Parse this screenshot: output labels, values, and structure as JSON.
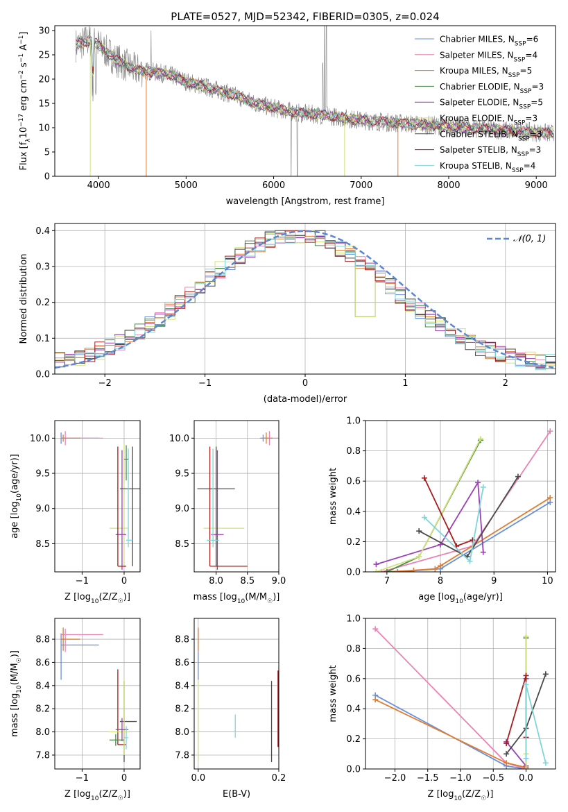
{
  "title": "PLATE=0527, MJD=52342, FIBERID=0305, z=0.024",
  "colors": {
    "chabrier_miles": "#6a8fdc",
    "salpeter_miles": "#ec82b4",
    "kroupa_miles": "#df7c2e",
    "chabrier_elodie": "#4a8a4a",
    "salpeter_elodie": "#9c3fb5",
    "kroupa_elodie": "#d2e27a",
    "chabrier_stelib": "#4a4a4a",
    "salpeter_stelib": "#a81b1b",
    "kroupa_stelib": "#7fd6d8",
    "data": "#808080",
    "gaussian": "#5b86d6",
    "grid": "#b0b0b0"
  },
  "chart_data": [
    {
      "type": "line",
      "title": "PLATE=0527, MJD=52342, FIBERID=0305, z=0.024",
      "xlabel": "wavelength [Angstrom, rest frame]",
      "ylabel": "Flux [f",
      "ylabel_parts": [
        "Flux [f",
        "λ",
        "10",
        "−17",
        " erg cm",
        "−2",
        " s",
        "−1",
        " A",
        "−1",
        "]"
      ],
      "xlim": [
        3500,
        9220
      ],
      "ylim": [
        0,
        31
      ],
      "xticks": [
        "4000",
        "5000",
        "6000",
        "7000",
        "8000",
        "9000"
      ],
      "yticks": [
        "0",
        "5",
        "10",
        "15",
        "20",
        "25",
        "30"
      ],
      "x_range_data": [
        3740,
        9200
      ],
      "series": [
        {
          "name": "Chabrier MILES, N",
          "sub": "SSP",
          "tail": "=6",
          "color_key": "chabrier_miles"
        },
        {
          "name": "Salpeter MILES, N",
          "sub": "SSP",
          "tail": "=4",
          "color_key": "salpeter_miles"
        },
        {
          "name": "Kroupa MILES, N",
          "sub": "SSP",
          "tail": "=5",
          "color_key": "kroupa_miles"
        },
        {
          "name": "Chabrier ELODIE, N",
          "sub": "SSP",
          "tail": "=3",
          "color_key": "chabrier_elodie"
        },
        {
          "name": "Salpeter ELODIE, N",
          "sub": "SSP",
          "tail": "=5",
          "color_key": "salpeter_elodie"
        },
        {
          "name": "Kroupa ELODIE, N",
          "sub": "SSP",
          "tail": "=3",
          "color_key": "kroupa_elodie"
        },
        {
          "name": "Chabrier STELIB, N",
          "sub": "SSP",
          "tail": "=3",
          "color_key": "chabrier_stelib"
        },
        {
          "name": "Salpeter STELIB, N",
          "sub": "SSP",
          "tail": "=3",
          "color_key": "salpeter_stelib"
        },
        {
          "name": "Kroupa STELIB, N",
          "sub": "SSP",
          "tail": "=4",
          "color_key": "kroupa_stelib"
        }
      ],
      "continuum": [
        [
          3740,
          27
        ],
        [
          3900,
          28
        ],
        [
          4000,
          27
        ],
        [
          4200,
          24
        ],
        [
          4400,
          22
        ],
        [
          4600,
          21.5
        ],
        [
          4800,
          21
        ],
        [
          5000,
          19.5
        ],
        [
          5200,
          18.5
        ],
        [
          5500,
          17
        ],
        [
          5800,
          15
        ],
        [
          6000,
          14
        ],
        [
          6300,
          13
        ],
        [
          6600,
          12.5
        ],
        [
          6800,
          12
        ],
        [
          7000,
          11.5
        ],
        [
          7400,
          11
        ],
        [
          7800,
          10.5
        ],
        [
          8200,
          10
        ],
        [
          8600,
          9.5
        ],
        [
          9200,
          8.8
        ]
      ],
      "legend_position": "upper right"
    },
    {
      "type": "line",
      "xlabel": "(data-model)/error",
      "ylabel": "Normed distribution",
      "xlim": [
        -2.5,
        2.5
      ],
      "ylim": [
        0,
        0.42
      ],
      "xticks": [
        "−2",
        "−1",
        "0",
        "1",
        "2"
      ],
      "yticks": [
        "0.0",
        "0.1",
        "0.2",
        "0.3",
        "0.4"
      ],
      "series": [
        {
          "name": "𝒩(0, 1)",
          "type": "dashed"
        }
      ],
      "legend_position": "upper right",
      "grid": true
    },
    {
      "type": "scatter",
      "xlabel": "Z [log",
      "xlabel_parts": [
        "Z [log",
        "10",
        "(Z/Z",
        "☉",
        ")]"
      ],
      "ylabel_parts": [
        "age  [log",
        "10",
        "(age/yr)]"
      ],
      "xlim": [
        -1.65,
        0.38
      ],
      "ylim": [
        8.1,
        10.25
      ],
      "xticks": [
        "−1",
        "0"
      ],
      "yticks": [
        "8.5",
        "9.0",
        "9.5",
        "10.0"
      ],
      "points": [
        {
          "c": "chabrier_miles",
          "x": -1.5,
          "y": 10.0,
          "xerr": [
            0,
            0.9
          ],
          "yerr": [
            0.08,
            0.08
          ]
        },
        {
          "c": "salpeter_miles",
          "x": -1.4,
          "y": 10.0,
          "xerr": [
            0.1,
            0.9
          ],
          "yerr": [
            0.1,
            0.1
          ]
        },
        {
          "c": "kroupa_miles",
          "x": -1.45,
          "y": 10.0,
          "xerr": [
            0.05,
            0.4
          ],
          "yerr": [
            0.05,
            0.05
          ]
        },
        {
          "c": "kroupa_elodie",
          "x": 0.0,
          "y": 8.72,
          "xerr": [
            0.35,
            0.1
          ],
          "yerr": [
            0.55,
            1.2
          ]
        },
        {
          "c": "salpeter_elodie",
          "x": -0.05,
          "y": 8.63,
          "xerr": [
            0.15,
            0.1
          ],
          "yerr": [
            0.5,
            1.2
          ]
        },
        {
          "c": "chabrier_stelib",
          "x": 0.2,
          "y": 9.28,
          "xerr": [
            0.3,
            0.3
          ],
          "yerr": [
            1.1,
            0.6
          ]
        },
        {
          "c": "salpeter_stelib",
          "x": -0.15,
          "y": 8.18,
          "xerr": [
            0.0,
            0.2
          ],
          "yerr": [
            0.0,
            1.7
          ]
        },
        {
          "c": "kroupa_stelib",
          "x": 0.1,
          "y": 8.55,
          "xerr": [
            0.05,
            0.1
          ],
          "yerr": [
            0.1,
            1.3
          ]
        },
        {
          "c": "chabrier_elodie",
          "x": 0.05,
          "y": 9.7,
          "xerr": [
            0.05,
            0.05
          ],
          "yerr": [
            0.3,
            0.2
          ]
        }
      ],
      "grid": true
    },
    {
      "type": "scatter",
      "xlabel_parts": [
        "mass [log",
        "10",
        "(M/M",
        "☉",
        ")]"
      ],
      "xlim": [
        7.65,
        9.0
      ],
      "ylim": [
        8.1,
        10.25
      ],
      "xticks": [
        "7.5",
        "8.0",
        "8.5",
        "9.0"
      ],
      "yticks": [
        "8.5",
        "9.0",
        "9.5",
        "10.0"
      ],
      "points": [
        {
          "c": "chabrier_miles",
          "x": 8.75,
          "y": 10.0,
          "xerr": [
            0.05,
            0.05
          ],
          "yerr": [
            0.05,
            0.05
          ]
        },
        {
          "c": "salpeter_miles",
          "x": 8.85,
          "y": 10.0,
          "xerr": [
            0.1,
            0.15
          ],
          "yerr": [
            0.1,
            0.1
          ]
        },
        {
          "c": "kroupa_miles",
          "x": 8.8,
          "y": 10.0,
          "xerr": [
            0.05,
            0.1
          ],
          "yerr": [
            0.08,
            0.08
          ]
        },
        {
          "c": "kroupa_elodie",
          "x": 8.0,
          "y": 8.72,
          "xerr": [
            0.2,
            0.45
          ],
          "yerr": [
            0.6,
            1.2
          ]
        },
        {
          "c": "salpeter_elodie",
          "x": 8.02,
          "y": 8.63,
          "xerr": [
            0.1,
            0.1
          ],
          "yerr": [
            0.5,
            1.2
          ]
        },
        {
          "c": "chabrier_stelib",
          "x": 8.0,
          "y": 9.28,
          "xerr": [
            0.3,
            0.3
          ],
          "yerr": [
            1.1,
            0.6
          ]
        },
        {
          "c": "salpeter_stelib",
          "x": 7.9,
          "y": 8.18,
          "xerr": [
            0.0,
            0.6
          ],
          "yerr": [
            0.0,
            1.7
          ]
        },
        {
          "c": "kroupa_stelib",
          "x": 7.95,
          "y": 8.55,
          "xerr": [
            0.1,
            0.1
          ],
          "yerr": [
            0.1,
            1.3
          ]
        }
      ],
      "grid": true
    },
    {
      "type": "line",
      "xlabel_parts": [
        "age  [log",
        "10",
        "(age/yr)]"
      ],
      "ylabel": "mass weight",
      "xlim": [
        6.6,
        10.15
      ],
      "ylim": [
        0,
        1.0
      ],
      "xticks": [
        "7",
        "8",
        "9",
        "10"
      ],
      "yticks": [
        "0.0",
        "0.2",
        "0.4",
        "0.6",
        "0.8",
        "1.0"
      ],
      "series": [
        {
          "c": "chabrier_miles",
          "x": [
            7.2,
            8.0,
            10.05
          ],
          "y": [
            0.0,
            0.02,
            0.46
          ]
        },
        {
          "c": "salpeter_miles",
          "x": [
            6.9,
            8.6,
            10.05
          ],
          "y": [
            0.0,
            0.17,
            0.93
          ]
        },
        {
          "c": "kroupa_miles",
          "x": [
            7.0,
            7.5,
            7.9,
            8.0,
            10.05
          ],
          "y": [
            0.0,
            0.01,
            0.02,
            0.04,
            0.49
          ]
        },
        {
          "c": "chabrier_elodie",
          "x": [
            7.0,
            7.6,
            8.75
          ],
          "y": [
            0.0,
            0.1,
            0.87
          ]
        },
        {
          "c": "salpeter_elodie",
          "x": [
            6.8,
            8.0,
            8.7,
            8.8
          ],
          "y": [
            0.05,
            0.18,
            0.59,
            0.13
          ]
        },
        {
          "c": "kroupa_elodie",
          "x": [
            6.8,
            7.6,
            8.75
          ],
          "y": [
            0.0,
            0.1,
            0.88
          ]
        },
        {
          "c": "chabrier_stelib",
          "x": [
            7.6,
            8.5,
            9.45
          ],
          "y": [
            0.27,
            0.1,
            0.63
          ]
        },
        {
          "c": "salpeter_stelib",
          "x": [
            7.7,
            8.3,
            8.6
          ],
          "y": [
            0.62,
            0.17,
            0.21
          ]
        },
        {
          "c": "kroupa_stelib",
          "x": [
            7.7,
            8.55,
            8.8
          ],
          "y": [
            0.36,
            0.07,
            0.56
          ]
        }
      ],
      "grid": true
    },
    {
      "type": "scatter",
      "xlabel_parts": [
        "Z [log",
        "10",
        "(Z/Z",
        "☉",
        ")]"
      ],
      "ylabel_parts": [
        "mass [log",
        "10",
        "(M/M",
        "☉",
        ")]"
      ],
      "xlim": [
        -1.65,
        0.38
      ],
      "ylim": [
        7.68,
        8.98
      ],
      "xticks": [
        "−1",
        "0"
      ],
      "yticks": [
        "7.8",
        "8.0",
        "8.2",
        "8.4",
        "8.6",
        "8.8"
      ],
      "points": [
        {
          "c": "chabrier_miles",
          "x": -1.5,
          "y": 8.75,
          "xerr": [
            0.0,
            0.9
          ],
          "yerr": [
            0.3,
            0.1
          ]
        },
        {
          "c": "salpeter_miles",
          "x": -1.4,
          "y": 8.84,
          "xerr": [
            0.1,
            0.9
          ],
          "yerr": [
            0.15,
            0.05
          ]
        },
        {
          "c": "kroupa_miles",
          "x": -1.45,
          "y": 8.8,
          "xerr": [
            0.05,
            0.4
          ],
          "yerr": [
            0.1,
            0.1
          ]
        },
        {
          "c": "chabrier_stelib",
          "x": 0.0,
          "y": 8.09,
          "xerr": [
            0.1,
            0.3
          ],
          "yerr": [
            0.35,
            0.35
          ]
        },
        {
          "c": "salpeter_stelib",
          "x": -0.15,
          "y": 7.89,
          "xerr": [
            0.0,
            0.2
          ],
          "yerr": [
            0.0,
            0.65
          ]
        },
        {
          "c": "kroupa_elodie",
          "x": 0.0,
          "y": 8.0,
          "xerr": [
            0.35,
            0.1
          ],
          "yerr": [
            0.2,
            0.45
          ]
        },
        {
          "c": "salpeter_elodie",
          "x": -0.05,
          "y": 8.02,
          "xerr": [
            0.15,
            0.15
          ],
          "yerr": [
            0.1,
            0.1
          ]
        },
        {
          "c": "chabrier_elodie",
          "x": -0.2,
          "y": 7.93,
          "xerr": [
            0.15,
            0.2
          ],
          "yerr": [
            0.05,
            0.05
          ]
        },
        {
          "c": "kroupa_stelib",
          "x": 0.05,
          "y": 7.95,
          "xerr": [
            0.05,
            0.05
          ],
          "yerr": [
            0.1,
            0.1
          ]
        }
      ],
      "grid": true
    },
    {
      "type": "scatter",
      "xlabel": "E(B-V)",
      "xlim": [
        -0.01,
        0.2
      ],
      "ylim": [
        7.68,
        8.98
      ],
      "xticks": [
        "0.0",
        "0.2"
      ],
      "yticks": [
        "7.8",
        "8.0",
        "8.2",
        "8.4",
        "8.6",
        "8.8"
      ],
      "points": [
        {
          "c": "chabrier_miles",
          "x": 0.0,
          "y": 8.75,
          "xerr": [
            0,
            0
          ],
          "yerr": [
            0.3,
            0.1
          ]
        },
        {
          "c": "salpeter_miles",
          "x": 0.0,
          "y": 8.84,
          "xerr": [
            0,
            0
          ],
          "yerr": [
            0.15,
            0.05
          ]
        },
        {
          "c": "kroupa_miles",
          "x": 0.0,
          "y": 8.8,
          "xerr": [
            0,
            0
          ],
          "yerr": [
            0.1,
            0.1
          ]
        },
        {
          "c": "kroupa_elodie",
          "x": 0.0,
          "y": 8.1,
          "xerr": [
            0,
            0
          ],
          "yerr": [
            0.35,
            0.35
          ]
        },
        {
          "c": "kroupa_stelib",
          "x": 0.092,
          "y": 8.05,
          "xerr": [
            0,
            0
          ],
          "yerr": [
            0.1,
            0.1
          ]
        },
        {
          "c": "chabrier_stelib",
          "x": 0.182,
          "y": 8.09,
          "xerr": [
            0,
            0
          ],
          "yerr": [
            0.35,
            0.35
          ]
        },
        {
          "c": "salpeter_stelib",
          "x": 0.198,
          "y": 8.2,
          "xerr": [
            0,
            0
          ],
          "yerr": [
            0.33,
            0.33
          ]
        }
      ],
      "grid": true
    },
    {
      "type": "line",
      "xlabel_parts": [
        "Z [log",
        "10",
        "(Z/Z",
        "☉",
        ")]"
      ],
      "ylabel": "mass weight",
      "xlim": [
        -2.45,
        0.45
      ],
      "ylim": [
        0,
        1.0
      ],
      "xticks": [
        "−2.0",
        "−1.5",
        "−1.0",
        "−0.5",
        "0.0"
      ],
      "yticks": [
        "0.0",
        "0.2",
        "0.4",
        "0.6",
        "0.8",
        "1.0"
      ],
      "series": [
        {
          "c": "chabrier_miles",
          "x": [
            -2.3,
            -0.3,
            0.0
          ],
          "y": [
            0.49,
            0.02,
            0.0
          ]
        },
        {
          "c": "salpeter_miles",
          "x": [
            -2.3,
            -0.3,
            0.0
          ],
          "y": [
            0.93,
            0.04,
            0.0
          ]
        },
        {
          "c": "kroupa_miles",
          "x": [
            -2.3,
            -0.3,
            0.0
          ],
          "y": [
            0.46,
            0.04,
            0.01
          ]
        },
        {
          "c": "chabrier_elodie",
          "x": [
            0.0,
            0.0
          ],
          "y": [
            0.0,
            0.87
          ]
        },
        {
          "c": "salpeter_elodie",
          "x": [
            -0.3,
            0.0,
            0.0
          ],
          "y": [
            0.18,
            0.02,
            0.6
          ]
        },
        {
          "c": "kroupa_elodie",
          "x": [
            0.0,
            0.0,
            0.0
          ],
          "y": [
            0.0,
            0.1,
            0.88
          ]
        },
        {
          "c": "chabrier_stelib",
          "x": [
            -0.3,
            0.0,
            0.3
          ],
          "y": [
            0.1,
            0.27,
            0.63
          ]
        },
        {
          "c": "salpeter_stelib",
          "x": [
            -0.3,
            0.0,
            0.0
          ],
          "y": [
            0.17,
            0.62,
            0.21
          ]
        },
        {
          "c": "kroupa_stelib",
          "x": [
            0.0,
            0.0,
            0.3
          ],
          "y": [
            0.07,
            0.56,
            0.04
          ]
        }
      ],
      "grid": true
    }
  ]
}
